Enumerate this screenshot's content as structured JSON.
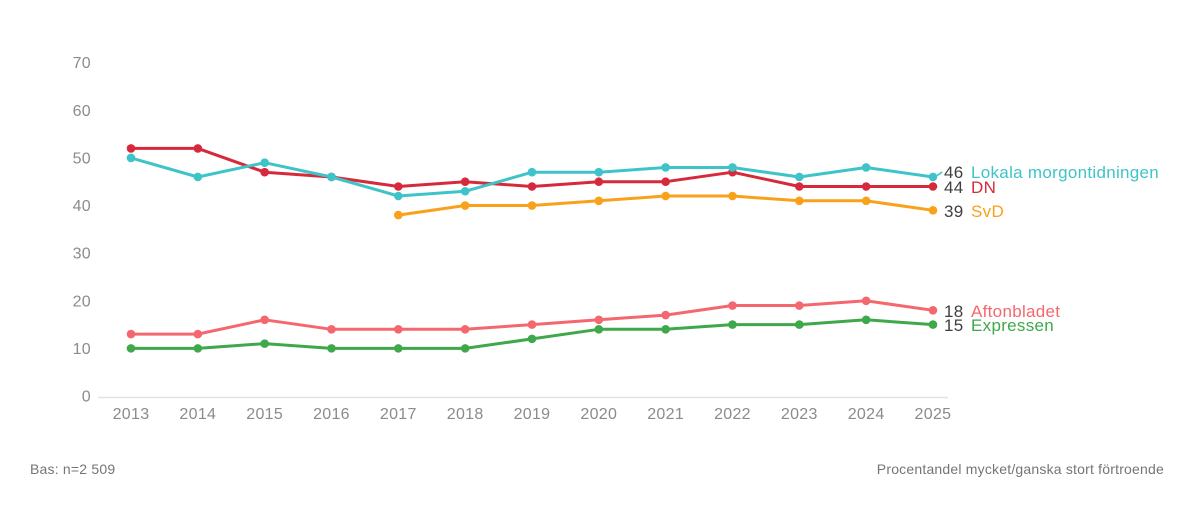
{
  "chart_data": {
    "type": "line",
    "title": "",
    "x": [
      2013,
      2014,
      2015,
      2016,
      2017,
      2018,
      2019,
      2020,
      2021,
      2022,
      2023,
      2024,
      2025
    ],
    "series": [
      {
        "name": "Lokala morgontidningen",
        "color": "#3EC4C8",
        "end_value": "46",
        "values": [
          50,
          46,
          49,
          46,
          42,
          43,
          47,
          47,
          48,
          48,
          46,
          48,
          46
        ]
      },
      {
        "name": "DN",
        "color": "#D62A3C",
        "end_value": "44",
        "values": [
          52,
          52,
          47,
          46,
          44,
          45,
          44,
          45,
          45,
          47,
          44,
          44,
          44
        ]
      },
      {
        "name": "SvD",
        "color": "#F9A11B",
        "end_value": "39",
        "values": [
          null,
          null,
          null,
          null,
          38,
          40,
          40,
          41,
          42,
          42,
          41,
          41,
          39
        ]
      },
      {
        "name": "Aftonbladet",
        "color": "#F5676E",
        "end_value": "18",
        "values": [
          13,
          13,
          16,
          14,
          14,
          14,
          15,
          16,
          17,
          19,
          19,
          20,
          18
        ]
      },
      {
        "name": "Expressen",
        "color": "#3EA84A",
        "end_value": "15",
        "values": [
          10,
          10,
          11,
          10,
          10,
          10,
          12,
          14,
          14,
          15,
          15,
          16,
          15
        ]
      }
    ],
    "ylim": [
      0,
      70
    ],
    "yticks": [
      0,
      10,
      20,
      30,
      40,
      50,
      60,
      70
    ],
    "grid": false,
    "legend_position": "right-end-labels"
  },
  "footer": {
    "left": "Bas: n=2 509",
    "right": "Procentandel mycket/ganska stort förtroende"
  },
  "colors": {
    "axis_text": "#8B8B8B",
    "axis_line": "#E3E3E3",
    "value_label": "#3F3F3F",
    "background": "#FFFFFF"
  }
}
